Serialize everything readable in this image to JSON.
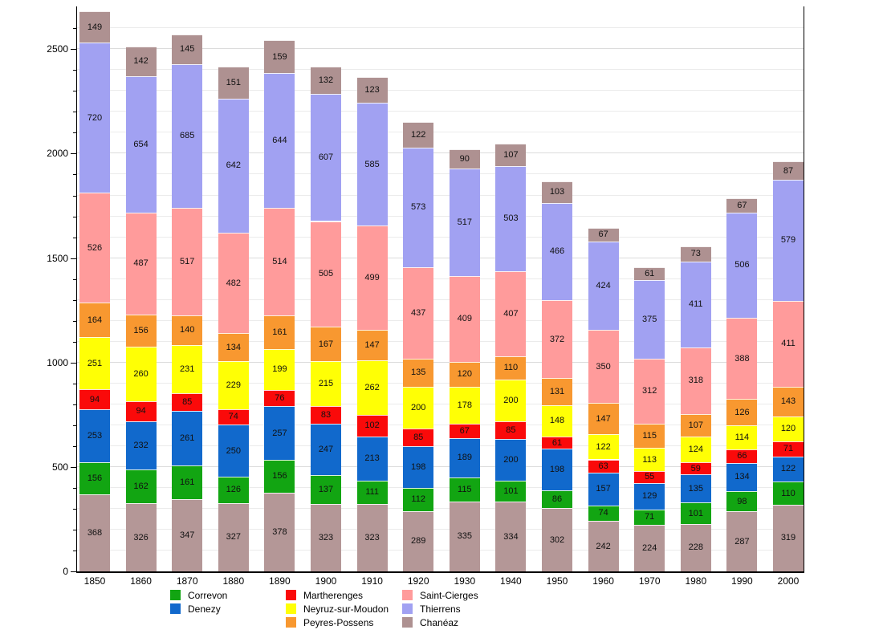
{
  "chart_data": {
    "type": "stacked-bar",
    "title": "",
    "categories": [
      "1850",
      "1860",
      "1870",
      "1880",
      "1890",
      "1900",
      "1910",
      "1920",
      "1930",
      "1940",
      "1950",
      "1960",
      "1970",
      "1980",
      "1990",
      "2000"
    ],
    "series": [
      {
        "id": "bottom-unlabeled",
        "name": "",
        "in_legend": false,
        "color": "#b49797",
        "values": [
          368,
          326,
          347,
          327,
          378,
          323,
          323,
          289,
          335,
          334,
          302,
          242,
          224,
          228,
          287,
          319
        ]
      },
      {
        "id": "correvon",
        "name": "Correvon",
        "in_legend": true,
        "color": "#12a512",
        "values": [
          156,
          162,
          161,
          126,
          156,
          137,
          111,
          112,
          115,
          101,
          86,
          74,
          71,
          101,
          98,
          110
        ]
      },
      {
        "id": "denezy",
        "name": "Denezy",
        "in_legend": true,
        "color": "#1169cc",
        "values": [
          253,
          232,
          261,
          250,
          257,
          247,
          213,
          198,
          189,
          200,
          198,
          157,
          129,
          135,
          134,
          122
        ]
      },
      {
        "id": "martherenges",
        "name": "Martherenges",
        "in_legend": true,
        "color": "#fa0a0a",
        "values": [
          94,
          94,
          85,
          74,
          76,
          83,
          102,
          85,
          67,
          85,
          61,
          63,
          55,
          59,
          66,
          71
        ]
      },
      {
        "id": "neyruz-sur-moudon",
        "name": "Neyruz-sur-Moudon",
        "in_legend": true,
        "color": "#ffff05",
        "values": [
          251,
          260,
          231,
          229,
          199,
          215,
          262,
          200,
          178,
          200,
          148,
          122,
          113,
          124,
          114,
          120
        ]
      },
      {
        "id": "peyres-possens",
        "name": "Peyres-Possens",
        "in_legend": true,
        "color": "#f89830",
        "values": [
          164,
          156,
          140,
          134,
          161,
          167,
          147,
          135,
          120,
          110,
          131,
          147,
          115,
          107,
          126,
          143
        ]
      },
      {
        "id": "saint-cierges",
        "name": "Saint-Cierges",
        "in_legend": true,
        "color": "#ff9b9b",
        "values": [
          526,
          487,
          517,
          482,
          514,
          505,
          499,
          437,
          409,
          407,
          372,
          350,
          312,
          318,
          388,
          411
        ]
      },
      {
        "id": "thierrens",
        "name": "Thierrens",
        "in_legend": true,
        "color": "#a1a1f2",
        "values": [
          720,
          654,
          685,
          642,
          644,
          607,
          585,
          573,
          517,
          503,
          466,
          424,
          375,
          411,
          506,
          579
        ]
      },
      {
        "id": "chaneaz",
        "name": "Chanéaz",
        "in_legend": true,
        "color": "#ae9191",
        "values": [
          149,
          142,
          145,
          151,
          159,
          132,
          123,
          122,
          90,
          107,
          103,
          67,
          61,
          73,
          67,
          87
        ]
      }
    ],
    "y_axis": {
      "ticks": [
        0,
        500,
        1000,
        1500,
        2000,
        2500
      ],
      "minor_step": 100,
      "max_gridline": 2600,
      "ylim": [
        0,
        2600
      ]
    },
    "legend_position": "bottom",
    "grid": true,
    "legend_columns": [
      [
        "Correvon",
        "Denezy"
      ],
      [
        "Martherenges",
        "Neyruz-sur-Moudon",
        "Peyres-Possens"
      ],
      [
        "Saint-Cierges",
        "Thierrens",
        "Chanéaz"
      ]
    ]
  }
}
